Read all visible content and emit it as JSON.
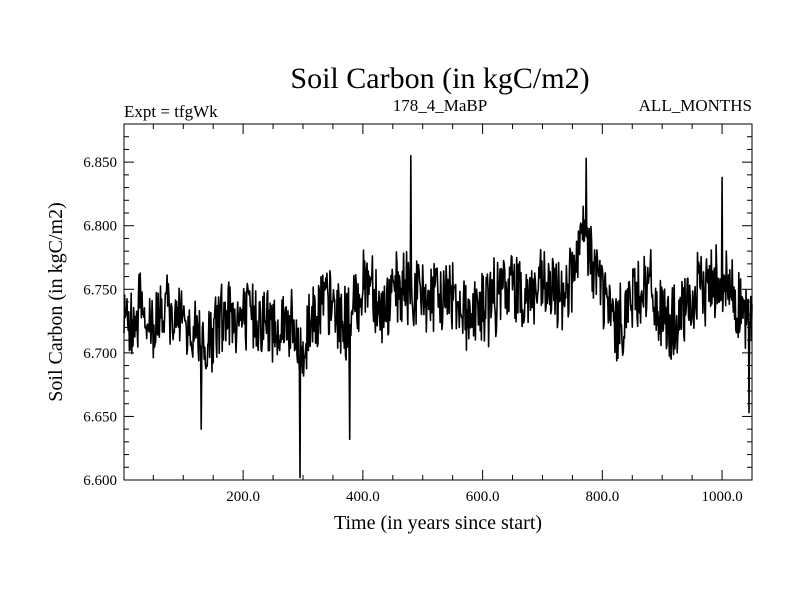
{
  "chart_data": {
    "type": "line",
    "title": "Soil Carbon (in kgC/m2)",
    "subtitle_left": "Expt = tfgWk",
    "subtitle_center": "178_4_MaBP",
    "subtitle_right": "ALL_MONTHS",
    "xlabel": "Time (in years since start)",
    "ylabel": "Soil Carbon (in kgC/m2)",
    "xlim": [
      1,
      1050
    ],
    "ylim": [
      6.6,
      6.88
    ],
    "xticks": [
      200,
      400,
      600,
      800,
      1000
    ],
    "xtick_labels": [
      "200.0",
      "400.0",
      "600.0",
      "800.0",
      "1000.0"
    ],
    "yticks": [
      6.6,
      6.65,
      6.7,
      6.75,
      6.8,
      6.85
    ],
    "ytick_labels": [
      "6.600",
      "6.650",
      "6.700",
      "6.750",
      "6.800",
      "6.850"
    ],
    "grid": false,
    "series": [
      {
        "name": "Soil Carbon",
        "color": "#000000",
        "anchors_x": [
          1,
          20,
          50,
          75,
          100,
          125,
          130,
          150,
          175,
          200,
          225,
          250,
          275,
          290,
          300,
          310,
          330,
          350,
          375,
          400,
          415,
          430,
          450,
          475,
          500,
          525,
          550,
          575,
          600,
          625,
          650,
          675,
          700,
          725,
          750,
          770,
          790,
          810,
          825,
          850,
          875,
          900,
          925,
          950,
          975,
          1000,
          1025,
          1050
        ],
        "anchors_mean": [
          6.72,
          6.735,
          6.72,
          6.73,
          6.72,
          6.715,
          6.7,
          6.715,
          6.73,
          6.725,
          6.73,
          6.72,
          6.725,
          6.705,
          6.695,
          6.725,
          6.74,
          6.735,
          6.72,
          6.755,
          6.76,
          6.73,
          6.745,
          6.75,
          6.745,
          6.74,
          6.75,
          6.73,
          6.735,
          6.745,
          6.755,
          6.745,
          6.75,
          6.745,
          6.76,
          6.79,
          6.765,
          6.735,
          6.72,
          6.745,
          6.755,
          6.725,
          6.72,
          6.74,
          6.755,
          6.76,
          6.74,
          6.72
        ],
        "noise_amplitude": 0.03,
        "seed": 178,
        "extremes": [
          {
            "x": 295,
            "y": 6.602
          },
          {
            "x": 378,
            "y": 6.632
          },
          {
            "x": 480,
            "y": 6.855
          },
          {
            "x": 773,
            "y": 6.853
          },
          {
            "x": 1000,
            "y": 6.838
          },
          {
            "x": 130,
            "y": 6.64
          },
          {
            "x": 1045,
            "y": 6.653
          }
        ]
      }
    ]
  }
}
